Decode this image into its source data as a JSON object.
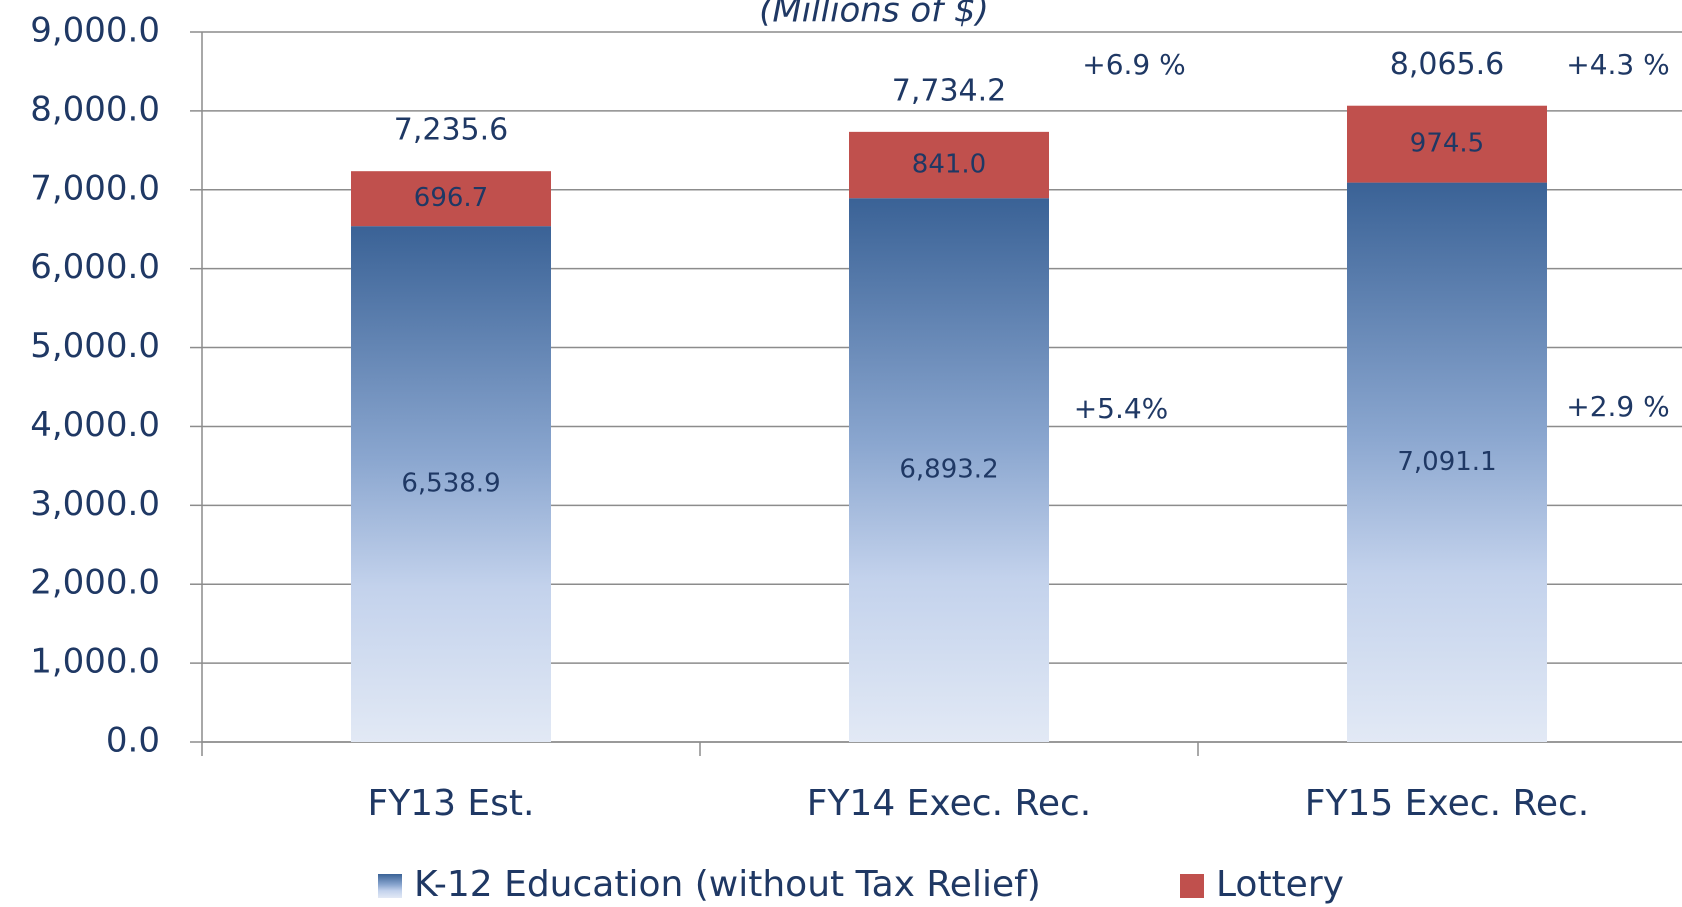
{
  "chart_data": {
    "type": "stacked_bar",
    "subtitle": "(Millions of $)",
    "categories": [
      "FY13 Est.",
      "FY14 Exec. Rec.",
      "FY15 Exec. Rec."
    ],
    "series": [
      {
        "name": "K-12 Education (without Tax Relief)",
        "color": "#3a6296",
        "values": [
          6538.9,
          6893.2,
          7091.1
        ],
        "value_labels": [
          "6,538.9",
          "6,893.2",
          "7,091.1"
        ]
      },
      {
        "name": "Lottery",
        "color": "#c0504d",
        "values": [
          696.7,
          841.0,
          974.5
        ],
        "value_labels": [
          "696.7",
          "841.0",
          "974.5"
        ]
      }
    ],
    "totals": {
      "values": [
        7235.6,
        7734.2,
        8065.6
      ],
      "value_labels": [
        "7,235.6",
        "7,734.2",
        "8,065.6"
      ]
    },
    "annotations": [
      "+6.9 %",
      "+4.3 %",
      "+5.4%",
      "+2.9 %"
    ],
    "ylim": [
      0,
      9000
    ],
    "yticks": [
      {
        "value": 0,
        "label": "0.0"
      },
      {
        "value": 1000,
        "label": "1,000.0"
      },
      {
        "value": 2000,
        "label": "2,000.0"
      },
      {
        "value": 3000,
        "label": "3,000.0"
      },
      {
        "value": 4000,
        "label": "4,000.0"
      },
      {
        "value": 5000,
        "label": "5,000.0"
      },
      {
        "value": 6000,
        "label": "6,000.0"
      },
      {
        "value": 7000,
        "label": "7,000.0"
      },
      {
        "value": 8000,
        "label": "8,000.0"
      },
      {
        "value": 9000,
        "label": "9,000.0"
      }
    ],
    "grid": true,
    "legend": "bottom"
  }
}
